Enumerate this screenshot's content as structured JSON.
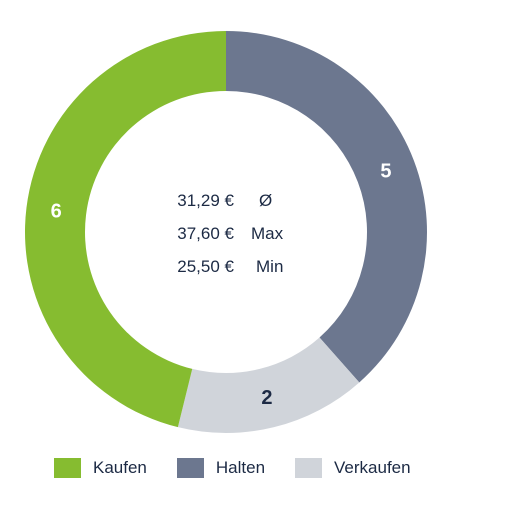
{
  "chart_data": {
    "type": "pie",
    "donut": true,
    "categories": [
      "Kaufen",
      "Halten",
      "Verkaufen"
    ],
    "values": [
      6,
      5,
      2
    ],
    "colors": [
      "#86bc30",
      "#6c778f",
      "#d0d4da"
    ],
    "label_colors": [
      "#ffffff",
      "#ffffff",
      "#1c2a44"
    ],
    "legend_position": "bottom",
    "center_stats": [
      {
        "value": "31,29 €",
        "label": "Ø"
      },
      {
        "value": "37,60 €",
        "label": "Max"
      },
      {
        "value": "25,50 €",
        "label": "Min"
      }
    ]
  }
}
